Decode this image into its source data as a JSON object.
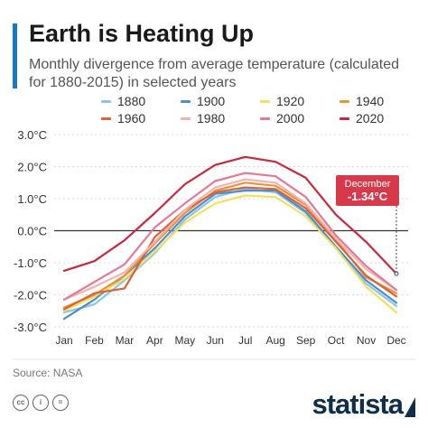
{
  "header": {
    "title": "Earth is Heating Up",
    "subtitle": "Monthly divergence from average temperature (calculated for 1880-2015) in selected years"
  },
  "colors": {
    "accent": "#1679c5",
    "callout": "#d63a4a",
    "zero_line": "#333333",
    "grid": "#cccccc",
    "brand": "#0f2e4a"
  },
  "chart_data": {
    "type": "line",
    "categories": [
      "Jan",
      "Feb",
      "Mar",
      "Apr",
      "May",
      "Jun",
      "Jul",
      "Aug",
      "Sep",
      "Oct",
      "Nov",
      "Dec"
    ],
    "y_ticks": [
      "3.0°C",
      "2.0°C",
      "1.0°C",
      "0.0°C",
      "-1.0°C",
      "-2.0°C",
      "-3.0°C"
    ],
    "ylim": [
      -3,
      3
    ],
    "grid": true,
    "legend_position": "top",
    "series": [
      {
        "name": "1880",
        "color": "#8ec3ea",
        "values": [
          -2.55,
          -2.3,
          -1.55,
          -0.7,
          0.35,
          1.05,
          1.3,
          1.2,
          0.55,
          -0.55,
          -1.65,
          -2.35
        ]
      },
      {
        "name": "1900",
        "color": "#4a90c8",
        "values": [
          -2.75,
          -2.15,
          -1.4,
          -0.55,
          0.45,
          1.15,
          1.25,
          1.25,
          0.6,
          -0.5,
          -1.55,
          -2.25
        ]
      },
      {
        "name": "1920",
        "color": "#f4e060",
        "values": [
          -2.5,
          -2.05,
          -1.5,
          -0.65,
          0.25,
          0.85,
          1.1,
          1.05,
          0.45,
          -0.55,
          -1.75,
          -2.55
        ]
      },
      {
        "name": "1940",
        "color": "#e8923c",
        "values": [
          -2.4,
          -2.0,
          -1.4,
          -0.4,
          0.55,
          1.25,
          1.5,
          1.4,
          0.8,
          -0.3,
          -1.45,
          -1.95
        ]
      },
      {
        "name": "1960",
        "color": "#d9633a",
        "values": [
          -2.45,
          -1.95,
          -1.8,
          -0.2,
          0.65,
          1.2,
          1.35,
          1.3,
          0.7,
          -0.35,
          -1.4,
          -2.05
        ]
      },
      {
        "name": "1980",
        "color": "#f3b2b0",
        "values": [
          -2.15,
          -1.75,
          -1.3,
          -0.35,
          0.65,
          1.35,
          1.6,
          1.5,
          0.85,
          -0.25,
          -1.2,
          -1.85
        ]
      },
      {
        "name": "2000",
        "color": "#e07a95",
        "values": [
          -2.15,
          -1.6,
          -1.05,
          0.1,
          0.85,
          1.55,
          1.8,
          1.7,
          1.05,
          -0.15,
          -1.1,
          -1.85
        ]
      },
      {
        "name": "2020",
        "color": "#c8283c",
        "values": [
          -1.25,
          -0.95,
          -0.3,
          0.55,
          1.45,
          2.05,
          2.3,
          2.15,
          1.65,
          0.5,
          -0.35,
          -1.34
        ]
      }
    ],
    "annotation": {
      "label": "December",
      "value": "-1.34°C"
    }
  },
  "footer": {
    "source": "Source: NASA",
    "brand": "statista",
    "license_icons": [
      "cc",
      "i",
      "="
    ]
  }
}
